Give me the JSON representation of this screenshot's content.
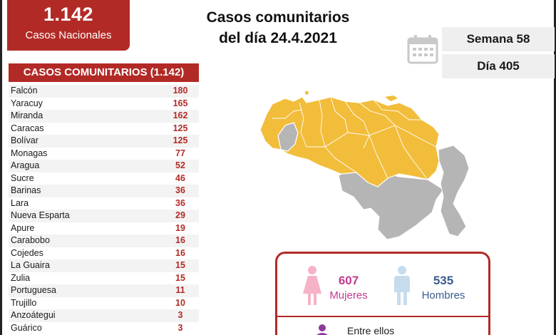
{
  "header": {
    "total_number": "1.142",
    "total_label": "Casos Nacionales",
    "title_line1": "Casos comunitarios",
    "title_line2": "del día 24.4.2021",
    "week": "Semana 58",
    "day": "Día 405"
  },
  "table": {
    "title": "CASOS COMUNITARIOS (1.142)",
    "rows": [
      {
        "state": "Falcón",
        "count": "180"
      },
      {
        "state": "Yaracuy",
        "count": "165"
      },
      {
        "state": "Miranda",
        "count": "162"
      },
      {
        "state": "Caracas",
        "count": "125"
      },
      {
        "state": "Bolívar",
        "count": "125"
      },
      {
        "state": "Monagas",
        "count": "77"
      },
      {
        "state": "Aragua",
        "count": "52"
      },
      {
        "state": "Sucre",
        "count": "46"
      },
      {
        "state": "Barinas",
        "count": "36"
      },
      {
        "state": "Lara",
        "count": "36"
      },
      {
        "state": "Nueva Esparta",
        "count": "29"
      },
      {
        "state": "Apure",
        "count": "19"
      },
      {
        "state": "Carabobo",
        "count": "16"
      },
      {
        "state": "Cojedes",
        "count": "16"
      },
      {
        "state": "La Guaira",
        "count": "15"
      },
      {
        "state": "Zulia",
        "count": "15"
      },
      {
        "state": "Portuguesa",
        "count": "11"
      },
      {
        "state": "Trujillo",
        "count": "10"
      },
      {
        "state": "Anzoátegui",
        "count": "3"
      },
      {
        "state": "Guárico",
        "count": "3"
      }
    ]
  },
  "gender": {
    "women_count": "607",
    "women_label": "Mujeres",
    "men_count": "535",
    "men_label": "Hombres",
    "between_label": "Entre ellos"
  },
  "colors": {
    "accent_red": "#b22a26",
    "map_yellow": "#f2bd3b",
    "map_gray": "#b5b5b5",
    "women_pink": "#c13b8f",
    "men_blue": "#3c5c8e"
  },
  "icons": {
    "calendar": "calendar-icon",
    "women": "woman-icon",
    "men": "man-icon",
    "between": "person-icon"
  }
}
